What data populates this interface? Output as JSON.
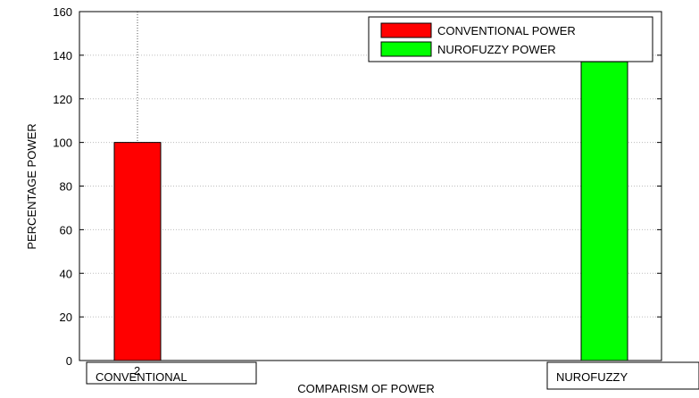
{
  "chart_data": {
    "type": "bar",
    "title": "",
    "xlabel": "COMPARISM OF POWER",
    "ylabel": "PERCENTAGE POWER",
    "ylim": [
      0,
      160
    ],
    "yticks": [
      "0",
      "20",
      "40",
      "60",
      "80",
      "100",
      "120",
      "140",
      "160"
    ],
    "categories": [
      "CONVENTIONAL",
      "NUROFUZZY"
    ],
    "stray_tick_label": "2",
    "grid": true,
    "legend_position": "top-right",
    "series": [
      {
        "name": "CONVENTIONAL POWER",
        "color": "#ff0000",
        "values": [
          100,
          null
        ]
      },
      {
        "name": "NUROFUZZY POWER",
        "color": "#00ff00",
        "values": [
          null,
          137
        ]
      }
    ]
  }
}
